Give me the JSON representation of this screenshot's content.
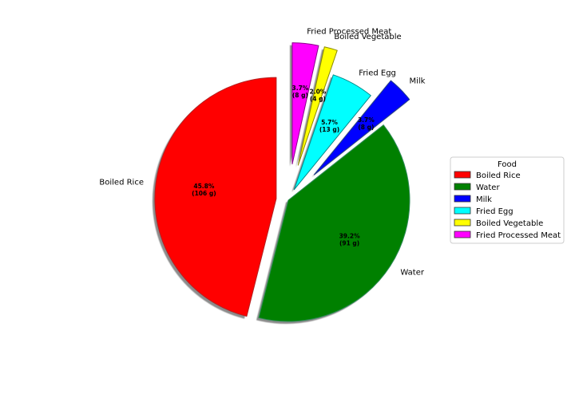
{
  "chart_data": {
    "type": "pie",
    "legend_title": "Food",
    "legend_position": "right",
    "shadow": true,
    "start_angle_deg": 90,
    "slices": [
      {
        "name": "Boiled Rice",
        "grams": 106,
        "percent": 45.8,
        "pct_label": "45.8%",
        "gram_label": "(106 g)",
        "color": "#ff0000",
        "edge": "#b22222",
        "explode": 0.1
      },
      {
        "name": "Water",
        "grams": 91,
        "percent": 39.2,
        "pct_label": "39.2%",
        "gram_label": "(91 g)",
        "color": "#008000",
        "edge": "#2e8b57",
        "explode": 0.0
      },
      {
        "name": "Milk",
        "grams": 8,
        "percent": 3.7,
        "pct_label": "3.7%",
        "gram_label": "(8 g)",
        "color": "#0000ff",
        "edge": "#1e3a8a",
        "explode": 0.3
      },
      {
        "name": "Fried Egg",
        "grams": 13,
        "percent": 5.7,
        "pct_label": "5.7%",
        "gram_label": "(13 g)",
        "color": "#00ffff",
        "edge": "#008b8b",
        "explode": 0.1
      },
      {
        "name": "Boiled Vegetable",
        "grams": 4,
        "percent": 2.0,
        "pct_label": "2.0%",
        "gram_label": "(4 g)",
        "color": "#ffff00",
        "edge": "#8b8b00",
        "explode": 0.3
      },
      {
        "name": "Fried Processed Meat",
        "grams": 8,
        "percent": 3.7,
        "pct_label": "3.7%",
        "gram_label": "(8 g)",
        "color": "#ff00ff",
        "edge": "#8b008b",
        "explode": 0.3
      }
    ]
  }
}
